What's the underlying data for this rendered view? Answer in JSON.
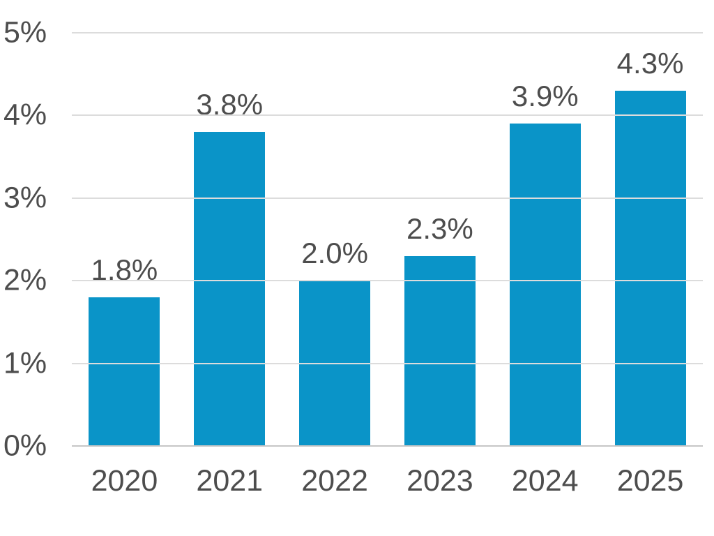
{
  "chart_data": {
    "type": "bar",
    "title": "",
    "xlabel": "",
    "ylabel": "",
    "categories": [
      "2020",
      "2021",
      "2022",
      "2023",
      "2024",
      "2025"
    ],
    "values": [
      1.8,
      3.8,
      2.0,
      2.3,
      3.9,
      4.3
    ],
    "data_labels": [
      "1.8%",
      "3.8%",
      "2.0%",
      "2.3%",
      "3.9%",
      "4.3%"
    ],
    "ylim": [
      0,
      5
    ],
    "yticks": [
      0,
      1,
      2,
      3,
      4,
      5
    ],
    "ytick_labels": [
      "0%",
      "1%",
      "2%",
      "3%",
      "4%",
      "5%"
    ],
    "grid": "horizontal",
    "legend": "none",
    "colors": {
      "bar": "#0a94c8",
      "gridline": "#dcdcdc",
      "axis_line": "#c6c6c6",
      "text": "#4d4d4d"
    }
  }
}
